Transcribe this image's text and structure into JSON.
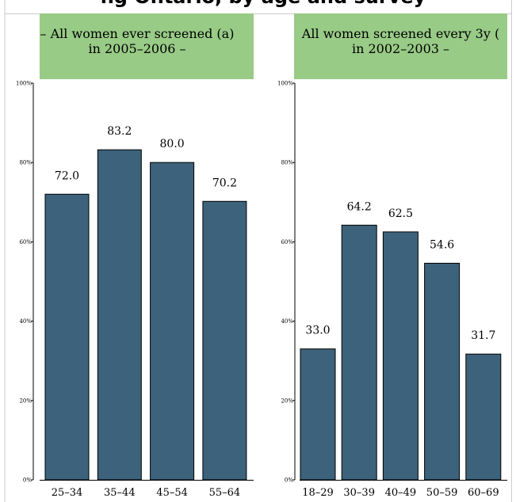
{
  "header": {
    "title": "ng Ontario, by age and survey"
  },
  "chart_data": [
    {
      "type": "bar",
      "title_lines": [
        "– All women ever screened (a)",
        "in 2005–2006 –"
      ],
      "categories": [
        "25–34",
        "35–44",
        "45–54",
        "55–64"
      ],
      "values": [
        72.0,
        83.2,
        80.0,
        70.2
      ],
      "value_labels": [
        "72.0",
        "83.2",
        "80.0",
        "70.2"
      ],
      "ylim": [
        0,
        100
      ],
      "yticks": [
        "0%",
        "20%",
        "40%",
        "60%",
        "80%",
        "100%"
      ],
      "grid": false,
      "colors": {
        "bar": "#3d627b",
        "title_bg": "#98cb86"
      }
    },
    {
      "type": "bar",
      "title_lines": [
        "All women screened every 3y (",
        "in 2002–2003 –"
      ],
      "categories": [
        "18–29",
        "30–39",
        "40–49",
        "50–59",
        "60–69"
      ],
      "values": [
        33.0,
        64.2,
        62.5,
        54.6,
        31.7
      ],
      "value_labels": [
        "33.0",
        "64.2",
        "62.5",
        "54.6",
        "31.7"
      ],
      "ylim": [
        0,
        100
      ],
      "yticks": [
        "0%",
        "20%",
        "40%",
        "60%",
        "80%",
        "100%"
      ],
      "grid": false,
      "colors": {
        "bar": "#3d627b",
        "title_bg": "#98cb86"
      }
    }
  ]
}
